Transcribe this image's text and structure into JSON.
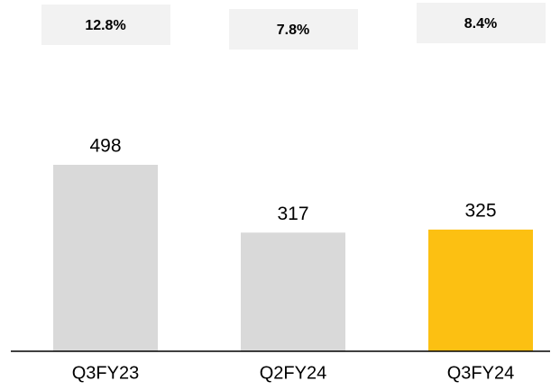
{
  "chart_data": {
    "type": "bar",
    "categories": [
      "Q3FY23",
      "Q2FY24",
      "Q3FY24"
    ],
    "values": [
      498,
      317,
      325
    ],
    "colors": [
      "#d9d9d9",
      "#d9d9d9",
      "#fcc012"
    ],
    "annotations": [
      "12.8%",
      "7.8%",
      "8.4%"
    ]
  }
}
